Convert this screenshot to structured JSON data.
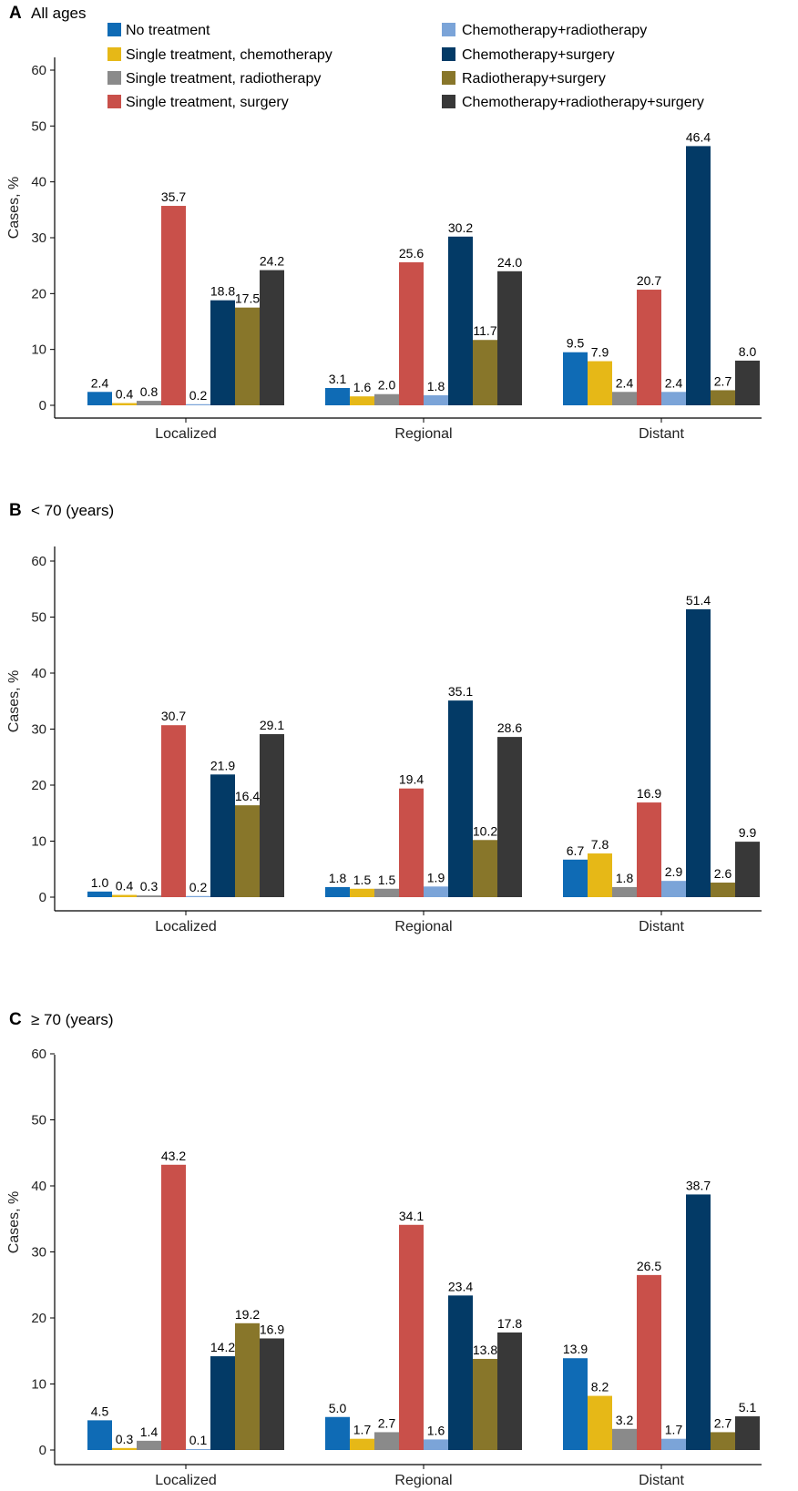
{
  "legend": {
    "items": [
      {
        "name": "No treatment",
        "color": "#0f6bb5"
      },
      {
        "name": "Single treatment, chemotherapy",
        "color": "#e6b817"
      },
      {
        "name": "Single treatment, radiotherapy",
        "color": "#8a8a8a"
      },
      {
        "name": "Single treatment, surgery",
        "color": "#c9504a"
      },
      {
        "name": "Chemotherapy+radiotherapy",
        "color": "#7ba4d8"
      },
      {
        "name": "Chemotherapy+surgery",
        "color": "#033a66"
      },
      {
        "name": "Radiotherapy+surgery",
        "color": "#88762a"
      },
      {
        "name": "Chemotherapy+radiotherapy+surgery",
        "color": "#383838"
      }
    ]
  },
  "chart_data": [
    {
      "type": "bar",
      "panel": "A",
      "title": "All ages",
      "ylabel": "Cases, %",
      "ylim": [
        0,
        60
      ],
      "yticks": [
        0,
        10,
        20,
        30,
        40,
        50,
        60
      ],
      "categories": [
        "Localized",
        "Regional",
        "Distant"
      ],
      "series": [
        {
          "name": "No treatment",
          "values": [
            2.4,
            3.1,
            9.5
          ],
          "labels": [
            "2.4",
            "3.1",
            "9.5"
          ]
        },
        {
          "name": "Single treatment, chemotherapy",
          "values": [
            0.4,
            1.6,
            7.9
          ],
          "labels": [
            "0.4",
            "1.6",
            "7.9"
          ]
        },
        {
          "name": "Single treatment, radiotherapy",
          "values": [
            0.8,
            2.0,
            2.4
          ],
          "labels": [
            "0.8",
            "2.0",
            "2.4"
          ]
        },
        {
          "name": "Single treatment, surgery",
          "values": [
            35.7,
            25.6,
            20.7
          ],
          "labels": [
            "35.7",
            "25.6",
            "20.7"
          ]
        },
        {
          "name": "Chemotherapy+radiotherapy",
          "values": [
            0.2,
            1.8,
            2.4
          ],
          "labels": [
            "0.2",
            "1.8",
            "2.4"
          ]
        },
        {
          "name": "Chemotherapy+surgery",
          "values": [
            18.8,
            30.2,
            46.4
          ],
          "labels": [
            "18.8",
            "30.2",
            "46.4"
          ]
        },
        {
          "name": "Radiotherapy+surgery",
          "values": [
            17.5,
            11.7,
            2.7
          ],
          "labels": [
            "17.5",
            "11.7",
            "2.7"
          ]
        },
        {
          "name": "Chemotherapy+radiotherapy+surgery",
          "values": [
            24.2,
            24.0,
            8.0
          ],
          "labels": [
            "24.2",
            "24.0",
            "8.0"
          ]
        }
      ]
    },
    {
      "type": "bar",
      "panel": "B",
      "title": "< 70 (years)",
      "ylabel": "Cases, %",
      "ylim": [
        0,
        60
      ],
      "yticks": [
        0,
        10,
        20,
        30,
        40,
        50,
        60
      ],
      "categories": [
        "Localized",
        "Regional",
        "Distant"
      ],
      "series": [
        {
          "name": "No treatment",
          "values": [
            1.0,
            1.8,
            6.7
          ],
          "labels": [
            "1.0",
            "1.8",
            "6.7"
          ]
        },
        {
          "name": "Single treatment, chemotherapy",
          "values": [
            0.4,
            1.5,
            7.8
          ],
          "labels": [
            "0.4",
            "1.5",
            "7.8"
          ]
        },
        {
          "name": "Single treatment, radiotherapy",
          "values": [
            0.3,
            1.5,
            1.8
          ],
          "labels": [
            "0.3",
            "1.5",
            "1.8"
          ]
        },
        {
          "name": "Single treatment, surgery",
          "values": [
            30.7,
            19.4,
            16.9
          ],
          "labels": [
            "30.7",
            "19.4",
            "16.9"
          ]
        },
        {
          "name": "Chemotherapy+radiotherapy",
          "values": [
            0.2,
            1.9,
            2.9
          ],
          "labels": [
            "0.2",
            "1.9",
            "2.9"
          ]
        },
        {
          "name": "Chemotherapy+surgery",
          "values": [
            21.9,
            35.1,
            51.4
          ],
          "labels": [
            "21.9",
            "35.1",
            "51.4"
          ]
        },
        {
          "name": "Radiotherapy+surgery",
          "values": [
            16.4,
            10.2,
            2.6
          ],
          "labels": [
            "16.4",
            "10.2",
            "2.6"
          ]
        },
        {
          "name": "Chemotherapy+radiotherapy+surgery",
          "values": [
            29.1,
            28.6,
            9.9
          ],
          "labels": [
            "29.1",
            "28.6",
            "9.9"
          ]
        }
      ]
    },
    {
      "type": "bar",
      "panel": "C",
      "title": "≥ 70 (years)",
      "ylabel": "Cases, %",
      "ylim": [
        0,
        60
      ],
      "yticks": [
        0,
        10,
        20,
        30,
        40,
        50,
        60
      ],
      "categories": [
        "Localized",
        "Regional",
        "Distant"
      ],
      "series": [
        {
          "name": "No treatment",
          "values": [
            4.5,
            5.0,
            13.9
          ],
          "labels": [
            "4.5",
            "5.0",
            "13.9"
          ]
        },
        {
          "name": "Single treatment, chemotherapy",
          "values": [
            0.3,
            1.7,
            8.2
          ],
          "labels": [
            "0.3",
            "1.7",
            "8.2"
          ]
        },
        {
          "name": "Single treatment, radiotherapy",
          "values": [
            1.4,
            2.7,
            3.2
          ],
          "labels": [
            "1.4",
            "2.7",
            "3.2"
          ]
        },
        {
          "name": "Single treatment, surgery",
          "values": [
            43.2,
            34.1,
            26.5
          ],
          "labels": [
            "43.2",
            "34.1",
            "26.5"
          ]
        },
        {
          "name": "Chemotherapy+radiotherapy",
          "values": [
            0.1,
            1.6,
            1.7
          ],
          "labels": [
            "0.1",
            "1.6",
            "1.7"
          ]
        },
        {
          "name": "Chemotherapy+surgery",
          "values": [
            14.2,
            23.4,
            38.7
          ],
          "labels": [
            "14.2",
            "23.4",
            "38.7"
          ]
        },
        {
          "name": "Radiotherapy+surgery",
          "values": [
            19.2,
            13.8,
            2.7
          ],
          "labels": [
            "19.2",
            "13.8",
            "2.7"
          ]
        },
        {
          "name": "Chemotherapy+radiotherapy+surgery",
          "values": [
            16.9,
            17.8,
            5.1
          ],
          "labels": [
            "16.9",
            "17.8",
            "5.1"
          ]
        }
      ]
    }
  ]
}
